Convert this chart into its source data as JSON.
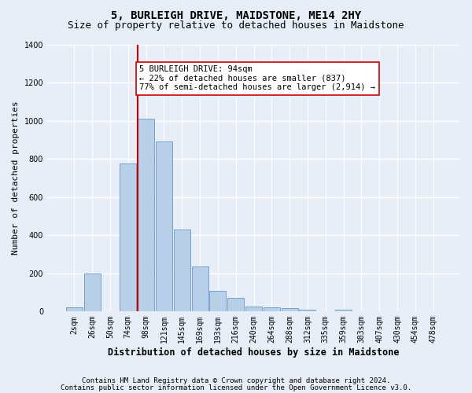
{
  "title": "5, BURLEIGH DRIVE, MAIDSTONE, ME14 2HY",
  "subtitle": "Size of property relative to detached houses in Maidstone",
  "xlabel": "Distribution of detached houses by size in Maidstone",
  "ylabel": "Number of detached properties",
  "categories": [
    "2sqm",
    "26sqm",
    "50sqm",
    "74sqm",
    "98sqm",
    "121sqm",
    "145sqm",
    "169sqm",
    "193sqm",
    "216sqm",
    "240sqm",
    "264sqm",
    "288sqm",
    "312sqm",
    "335sqm",
    "359sqm",
    "383sqm",
    "407sqm",
    "430sqm",
    "454sqm",
    "478sqm"
  ],
  "values": [
    20,
    200,
    0,
    775,
    1010,
    890,
    430,
    235,
    110,
    70,
    25,
    20,
    16,
    10,
    0,
    10,
    0,
    0,
    0,
    0,
    0
  ],
  "bar_color": "#b8cfe8",
  "bar_edge_color": "#6699cc",
  "vline_color": "#cc0000",
  "annotation_text": "5 BURLEIGH DRIVE: 94sqm\n← 22% of detached houses are smaller (837)\n77% of semi-detached houses are larger (2,914) →",
  "annotation_box_color": "#ffffff",
  "annotation_box_edge_color": "#cc0000",
  "ylim": [
    0,
    1400
  ],
  "yticks": [
    0,
    200,
    400,
    600,
    800,
    1000,
    1200,
    1400
  ],
  "footer_line1": "Contains HM Land Registry data © Crown copyright and database right 2024.",
  "footer_line2": "Contains public sector information licensed under the Open Government Licence v3.0.",
  "background_color": "#e8eef8",
  "axes_background": "#e8eef8",
  "grid_color": "#ffffff",
  "title_fontsize": 10,
  "subtitle_fontsize": 9,
  "xlabel_fontsize": 8.5,
  "ylabel_fontsize": 8,
  "tick_fontsize": 7,
  "footer_fontsize": 6.5,
  "annotation_fontsize": 7.5
}
